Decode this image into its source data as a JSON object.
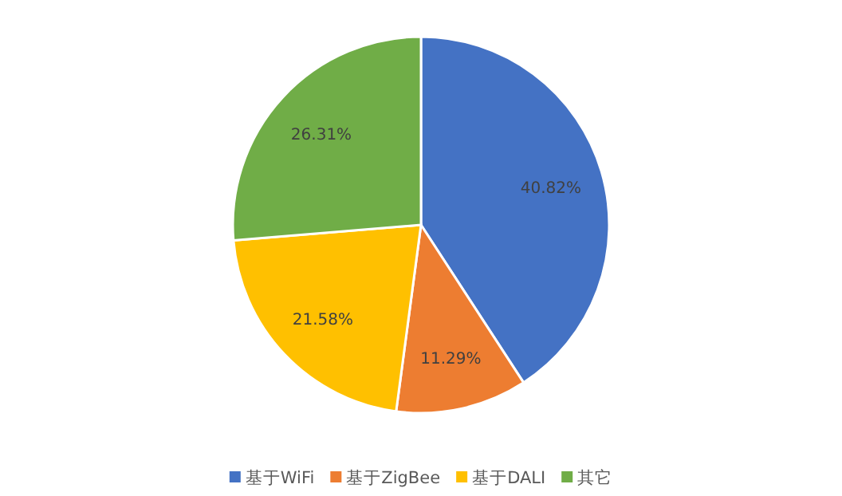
{
  "chart_data": {
    "type": "pie",
    "categories": [
      "基于WiFi",
      "基于ZigBee",
      "基于DALI",
      "其它"
    ],
    "values": [
      40.82,
      11.29,
      21.58,
      26.31
    ],
    "value_labels": [
      "40.82%",
      "11.29%",
      "21.58%",
      "26.31%"
    ],
    "colors": [
      "#4472c4",
      "#ed7d31",
      "#ffc000",
      "#70ad47"
    ],
    "legend": "bottom"
  }
}
